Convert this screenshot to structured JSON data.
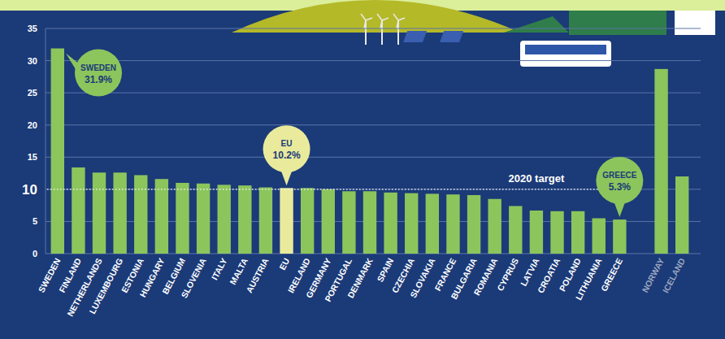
{
  "chart_data": {
    "type": "bar",
    "categories": [
      "SWEDEN",
      "FINLAND",
      "NETHERLANDS",
      "LUXEMBOURG",
      "ESTONIA",
      "HUNGARY",
      "BELGIUM",
      "SLOVENIA",
      "ITALY",
      "MALTA",
      "AUSTRIA",
      "EU",
      "IRELAND",
      "GERMANY",
      "PORTUGAL",
      "DENMARK",
      "SPAIN",
      "CZECHIA",
      "SLOVAKIA",
      "FRANCE",
      "BULGARIA",
      "ROMANIA",
      "CYPRUS",
      "LATVIA",
      "CROATIA",
      "POLAND",
      "LITHUANIA",
      "GREECE",
      null,
      "NORWAY",
      "ICELAND"
    ],
    "values": [
      31.9,
      13.4,
      12.6,
      12.6,
      12.2,
      11.6,
      11.0,
      10.9,
      10.7,
      10.6,
      10.3,
      10.2,
      10.2,
      10.0,
      9.7,
      9.7,
      9.5,
      9.4,
      9.3,
      9.2,
      9.1,
      8.5,
      7.4,
      6.7,
      6.6,
      6.6,
      5.5,
      5.3,
      null,
      28.7,
      12.0
    ],
    "colors": [
      "#8cc55c",
      "#8cc55c",
      "#8cc55c",
      "#8cc55c",
      "#8cc55c",
      "#8cc55c",
      "#8cc55c",
      "#8cc55c",
      "#8cc55c",
      "#8cc55c",
      "#8cc55c",
      "#e9ea9c",
      "#8cc55c",
      "#8cc55c",
      "#8cc55c",
      "#8cc55c",
      "#8cc55c",
      "#8cc55c",
      "#8cc55c",
      "#8cc55c",
      "#8cc55c",
      "#8cc55c",
      "#8cc55c",
      "#8cc55c",
      "#8cc55c",
      "#8cc55c",
      "#8cc55c",
      "#8cc55c",
      null,
      "#8cc55c",
      "#8cc55c"
    ],
    "ylim": [
      0,
      35
    ],
    "yticks": [
      0,
      5,
      10,
      15,
      20,
      25,
      30,
      35
    ],
    "grid": true,
    "target": {
      "value": 10,
      "label": "2020 target"
    },
    "annotations": [
      {
        "category": "SWEDEN",
        "label": "31.9%"
      },
      {
        "category": "EU",
        "label": "10.2%"
      },
      {
        "category": "GREECE",
        "label": "5.3%"
      }
    ]
  }
}
